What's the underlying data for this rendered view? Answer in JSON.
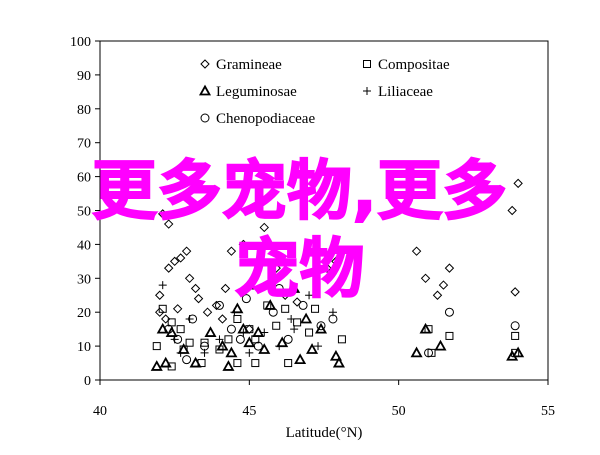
{
  "chart_data": {
    "type": "scatter",
    "xlabel": "Latitude(°N)",
    "ylabel": "",
    "xlim": [
      40,
      55
    ],
    "ylim": [
      0,
      100
    ],
    "x_ticks": [
      "40",
      "45",
      "50",
      "55"
    ],
    "y_ticks": [
      "0",
      "10",
      "20",
      "30",
      "40",
      "50",
      "60",
      "70",
      "80",
      "90",
      "100"
    ],
    "legend_position": "top-center",
    "grid": false,
    "series": [
      {
        "name": "Gramineae",
        "marker": "diamond",
        "points": [
          [
            42.0,
            25
          ],
          [
            42.0,
            20
          ],
          [
            42.2,
            18
          ],
          [
            42.3,
            33
          ],
          [
            42.5,
            35
          ],
          [
            42.7,
            36
          ],
          [
            42.9,
            38
          ],
          [
            43.0,
            30
          ],
          [
            43.2,
            27
          ],
          [
            42.6,
            21
          ],
          [
            43.6,
            20
          ],
          [
            43.9,
            22
          ],
          [
            44.1,
            18
          ],
          [
            44.2,
            27
          ],
          [
            44.4,
            38
          ],
          [
            44.8,
            40
          ],
          [
            45.5,
            45
          ],
          [
            45.9,
            33
          ],
          [
            46.2,
            25
          ],
          [
            46.6,
            23
          ],
          [
            47.6,
            33
          ],
          [
            47.9,
            35
          ],
          [
            42.3,
            46
          ],
          [
            42.1,
            49
          ],
          [
            50.6,
            38
          ],
          [
            50.9,
            30
          ],
          [
            51.3,
            25
          ],
          [
            51.5,
            28
          ],
          [
            51.7,
            33
          ],
          [
            53.9,
            26
          ],
          [
            53.8,
            50
          ],
          [
            54.0,
            58
          ],
          [
            43.3,
            24
          ],
          [
            45.0,
            15
          ]
        ]
      },
      {
        "name": "Compositae",
        "marker": "square",
        "points": [
          [
            41.9,
            10
          ],
          [
            42.1,
            21
          ],
          [
            42.4,
            17
          ],
          [
            42.7,
            15
          ],
          [
            43.0,
            11
          ],
          [
            43.5,
            11
          ],
          [
            44.0,
            9
          ],
          [
            44.3,
            12
          ],
          [
            44.6,
            18
          ],
          [
            45.0,
            15
          ],
          [
            45.2,
            12
          ],
          [
            45.6,
            22
          ],
          [
            46.2,
            21
          ],
          [
            46.6,
            17
          ],
          [
            47.0,
            14
          ],
          [
            47.2,
            21
          ],
          [
            48.1,
            12
          ],
          [
            42.4,
            4
          ],
          [
            43.4,
            5
          ],
          [
            44.6,
            5
          ],
          [
            45.2,
            5
          ],
          [
            46.3,
            5
          ],
          [
            51.0,
            15
          ],
          [
            51.1,
            8
          ],
          [
            51.7,
            13
          ],
          [
            53.9,
            13
          ],
          [
            53.9,
            8
          ],
          [
            45.9,
            16
          ],
          [
            42.8,
            9
          ]
        ]
      },
      {
        "name": "Leguminosae",
        "marker": "triangle",
        "points": [
          [
            41.9,
            4
          ],
          [
            42.1,
            15
          ],
          [
            42.4,
            14
          ],
          [
            42.8,
            9
          ],
          [
            43.2,
            5
          ],
          [
            43.7,
            14
          ],
          [
            44.1,
            10
          ],
          [
            44.4,
            8
          ],
          [
            44.6,
            21
          ],
          [
            45.0,
            11
          ],
          [
            45.3,
            14
          ],
          [
            45.7,
            22
          ],
          [
            46.1,
            11
          ],
          [
            46.5,
            27
          ],
          [
            46.9,
            18
          ],
          [
            47.1,
            9
          ],
          [
            47.4,
            15
          ],
          [
            47.9,
            7
          ],
          [
            48.0,
            5
          ],
          [
            50.6,
            8
          ],
          [
            50.9,
            15
          ],
          [
            51.4,
            10
          ],
          [
            53.8,
            7
          ],
          [
            54.0,
            8
          ],
          [
            44.3,
            4
          ],
          [
            45.5,
            9
          ],
          [
            46.7,
            6
          ],
          [
            44.8,
            15
          ],
          [
            42.2,
            5
          ],
          [
            45.0,
            28
          ]
        ]
      },
      {
        "name": "Liliaceae",
        "marker": "plus",
        "points": [
          [
            42.1,
            28
          ],
          [
            42.5,
            12
          ],
          [
            43.0,
            18
          ],
          [
            43.5,
            8
          ],
          [
            44.0,
            12
          ],
          [
            44.5,
            20
          ],
          [
            45.0,
            8
          ],
          [
            45.5,
            14
          ],
          [
            46.0,
            10
          ],
          [
            46.4,
            18
          ],
          [
            47.0,
            25
          ],
          [
            47.3,
            10
          ],
          [
            47.8,
            20
          ],
          [
            44.8,
            14
          ],
          [
            42.7,
            8
          ],
          [
            46.5,
            15
          ]
        ]
      },
      {
        "name": "Chenopodiaceae",
        "marker": "circle",
        "points": [
          [
            42.3,
            15
          ],
          [
            42.6,
            12
          ],
          [
            43.1,
            18
          ],
          [
            43.5,
            10
          ],
          [
            44.0,
            22
          ],
          [
            44.4,
            15
          ],
          [
            44.9,
            24
          ],
          [
            45.3,
            10
          ],
          [
            45.8,
            20
          ],
          [
            46.3,
            12
          ],
          [
            46.8,
            22
          ],
          [
            47.4,
            16
          ],
          [
            47.8,
            18
          ],
          [
            42.9,
            6
          ],
          [
            44.7,
            12
          ],
          [
            51.0,
            8
          ],
          [
            51.7,
            20
          ],
          [
            53.9,
            16
          ],
          [
            46.0,
            27
          ]
        ]
      }
    ]
  },
  "overlay": {
    "line1": "更多宠物,更多",
    "line2": "宠物"
  }
}
